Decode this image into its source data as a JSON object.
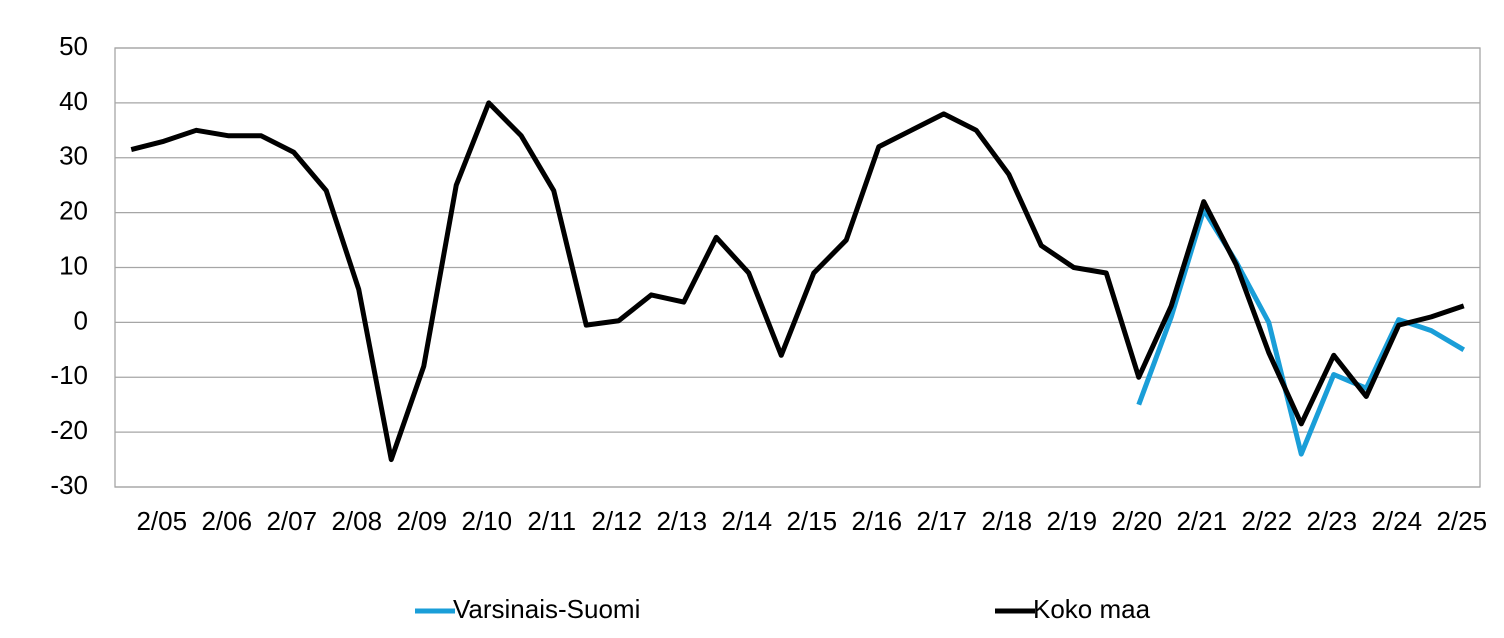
{
  "chart_data": {
    "type": "line",
    "categories": [
      null,
      "2/05",
      null,
      "2/06",
      null,
      "2/07",
      null,
      "2/08",
      null,
      "2/09",
      null,
      "2/10",
      null,
      "2/11",
      null,
      "2/12",
      null,
      "2/13",
      null,
      "2/14",
      null,
      "2/15",
      null,
      "2/16",
      null,
      "2/17",
      null,
      "2/18",
      null,
      "2/19",
      null,
      "2/20",
      null,
      "2/21",
      null,
      "2/22",
      null,
      "2/23",
      null,
      "2/24",
      null,
      "2/25"
    ],
    "series": [
      {
        "name": "Varsinais-Suomi",
        "color": "#1a9ed8",
        "values": [
          null,
          null,
          null,
          null,
          null,
          null,
          null,
          null,
          null,
          null,
          null,
          null,
          null,
          null,
          null,
          null,
          null,
          null,
          null,
          null,
          null,
          null,
          null,
          null,
          null,
          null,
          null,
          null,
          null,
          null,
          null,
          -15,
          1,
          20.5,
          11,
          0,
          -24,
          -9.5,
          -12,
          0.5,
          -1.5,
          -5
        ]
      },
      {
        "name": "Koko maa",
        "color": "#000000",
        "values": [
          31.5,
          33,
          35,
          34,
          34,
          31,
          24,
          6,
          -25,
          -8,
          25,
          40,
          34,
          24,
          -0.5,
          0.3,
          5,
          3.7,
          15.5,
          9,
          -6,
          9,
          15,
          32,
          35,
          38,
          35,
          27,
          14,
          10,
          9,
          -10,
          3,
          22,
          10.5,
          -5.5,
          -18.5,
          -6,
          -13.5,
          -0.5,
          1,
          3
        ]
      }
    ],
    "ylim": [
      -30,
      50
    ],
    "yticks": [
      -30,
      -20,
      -10,
      0,
      10,
      20,
      30,
      40,
      50
    ],
    "grid": true,
    "legend": "bottom"
  }
}
